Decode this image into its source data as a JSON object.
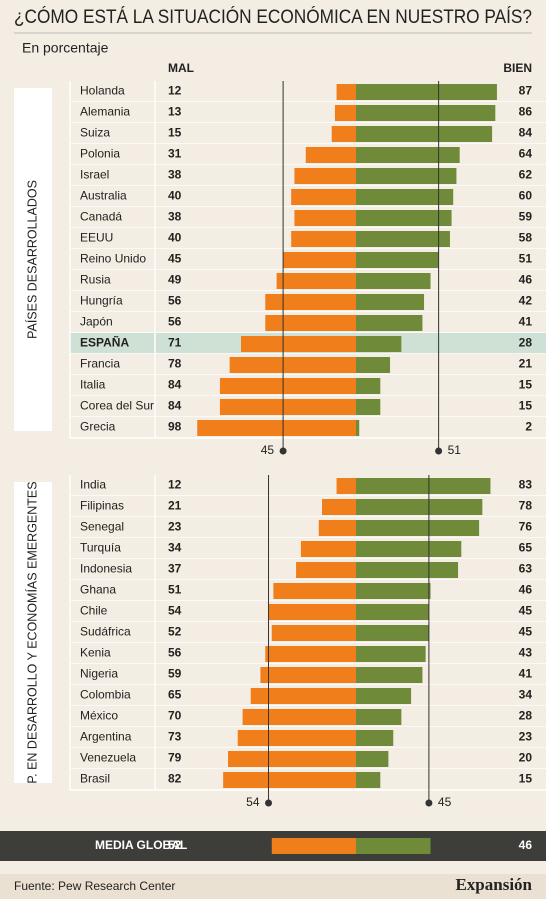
{
  "chart_data": {
    "type": "diverging_bar",
    "title": "¿CÓMO ESTÁ LA SITUACIÓN ECONÓMICA EN NUESTRO PAÍS?",
    "subtitle": "En porcentaje",
    "left_label": "MAL",
    "right_label": "BIEN",
    "left_color": "#f07f1b",
    "right_color": "#6f8b3a",
    "groups": [
      {
        "name": "PAÍSES DESARROLLADOS",
        "categories": [
          "Holanda",
          "Alemania",
          "Suiza",
          "Polonia",
          "Israel",
          "Australia",
          "Canadá",
          "EEUU",
          "Reino Unido",
          "Rusia",
          "Hungría",
          "Japón",
          "ESPAÑA",
          "Francia",
          "Italia",
          "Corea del Sur",
          "Grecia"
        ],
        "mal": [
          12,
          13,
          15,
          31,
          38,
          40,
          38,
          40,
          45,
          49,
          56,
          56,
          71,
          78,
          84,
          84,
          98
        ],
        "bien": [
          87,
          86,
          84,
          64,
          62,
          60,
          59,
          58,
          51,
          46,
          42,
          41,
          28,
          21,
          15,
          15,
          2
        ],
        "highlight": [
          12
        ],
        "mal_average": 45,
        "bien_average": 51
      },
      {
        "name": "P. EN DESARROLLO Y ECONOMÍAS EMERGENTES",
        "categories": [
          "India",
          "Filipinas",
          "Senegal",
          "Turquía",
          "Indonesia",
          "Ghana",
          "Chile",
          "Sudáfrica",
          "Kenia",
          "Nigeria",
          "Colombia",
          "México",
          "Argentina",
          "Venezuela",
          "Brasil"
        ],
        "mal": [
          12,
          21,
          23,
          34,
          37,
          51,
          54,
          52,
          56,
          59,
          65,
          70,
          73,
          79,
          82
        ],
        "bien": [
          83,
          78,
          76,
          65,
          63,
          46,
          45,
          45,
          43,
          41,
          34,
          28,
          23,
          20,
          15
        ],
        "highlight": [],
        "mal_average": 54,
        "bien_average": 45
      }
    ],
    "global": {
      "label": "MEDIA GLOBAL",
      "mal": 52,
      "bien": 46
    }
  },
  "footer": {
    "source": "Fuente: Pew Research Center",
    "brand": "Expansión"
  }
}
